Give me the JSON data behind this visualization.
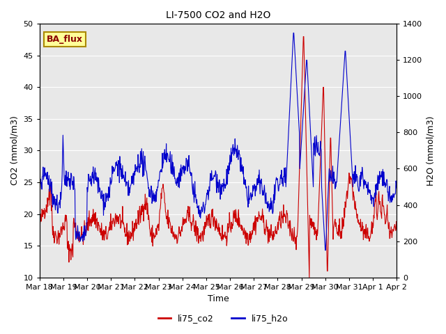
{
  "title": "LI-7500 CO2 and H2O",
  "xlabel": "Time",
  "ylabel_left": "CO2 (mmol/m3)",
  "ylabel_right": "H2O (mmol/m3)",
  "ylim_left": [
    10,
    50
  ],
  "ylim_right": [
    0,
    1400
  ],
  "yticks_left": [
    10,
    15,
    20,
    25,
    30,
    35,
    40,
    45,
    50
  ],
  "yticks_right": [
    0,
    200,
    400,
    600,
    800,
    1000,
    1200,
    1400
  ],
  "bg_color": "#e8e8e8",
  "line_color_co2": "#cc0000",
  "line_color_h2o": "#0000cc",
  "legend_label_co2": "li75_co2",
  "legend_label_h2o": "li75_h2o",
  "annotation_text": "BA_flux",
  "annotation_bg": "#ffff99",
  "annotation_border": "#aa8800",
  "n_points": 900,
  "x_start": 0,
  "x_end": 15.0,
  "xtick_labels": [
    "Mar 18",
    "Mar 19",
    "Mar 20",
    "Mar 21",
    "Mar 22",
    "Mar 23",
    "Mar 24",
    "Mar 25",
    "Mar 26",
    "Mar 27",
    "Mar 28",
    "Mar 29",
    "Mar 30",
    "Mar 31",
    "Apr 1",
    "Apr 2"
  ],
  "xtick_positions": [
    0,
    1,
    2,
    3,
    4,
    5,
    6,
    7,
    8,
    9,
    10,
    11,
    12,
    13,
    14,
    15
  ]
}
